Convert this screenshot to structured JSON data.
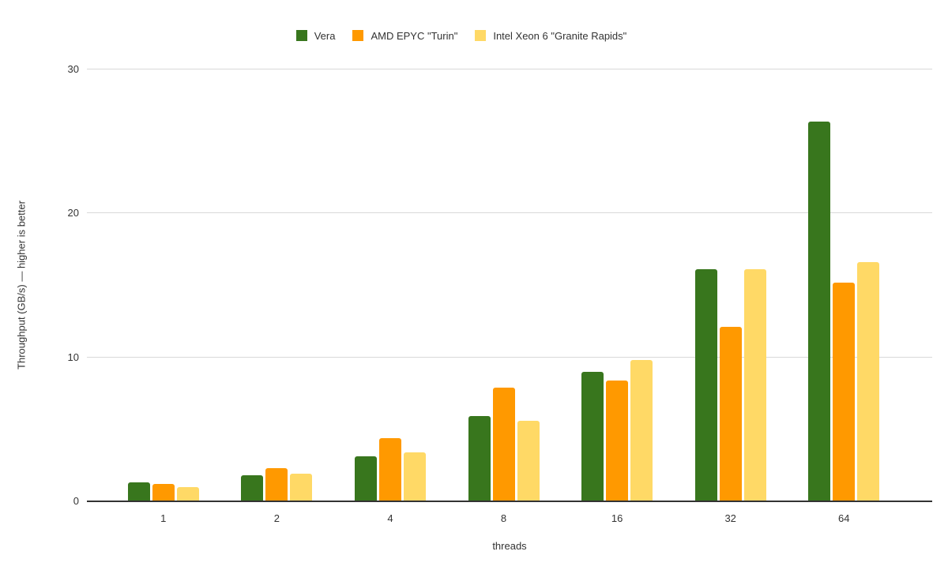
{
  "chart_data": {
    "type": "bar",
    "title": "",
    "xlabel": "threads",
    "ylabel": "Throughput (GB/s) — higher is better",
    "categories": [
      "1",
      "2",
      "4",
      "8",
      "16",
      "32",
      "64"
    ],
    "series": [
      {
        "name": "Vera",
        "color": "#38761d",
        "values": [
          1.3,
          1.8,
          3.1,
          5.9,
          9.0,
          16.1,
          26.4
        ]
      },
      {
        "name": "AMD EPYC \"Turin\"",
        "color": "#ff9900",
        "values": [
          1.2,
          2.3,
          4.4,
          7.9,
          8.4,
          12.1,
          15.2
        ]
      },
      {
        "name": "Intel Xeon 6 \"Granite Rapids\"",
        "color": "#ffd966",
        "values": [
          1.0,
          1.9,
          3.4,
          5.6,
          9.8,
          16.1,
          16.6
        ]
      }
    ],
    "ylim": [
      0,
      30
    ],
    "yticks": [
      0,
      10,
      20,
      30
    ],
    "grid": true,
    "legend_position": "top"
  },
  "style": {
    "gridline_color": "#d9d9d9",
    "axis_color": "#333333",
    "text_color": "#333333",
    "background": "#ffffff"
  }
}
